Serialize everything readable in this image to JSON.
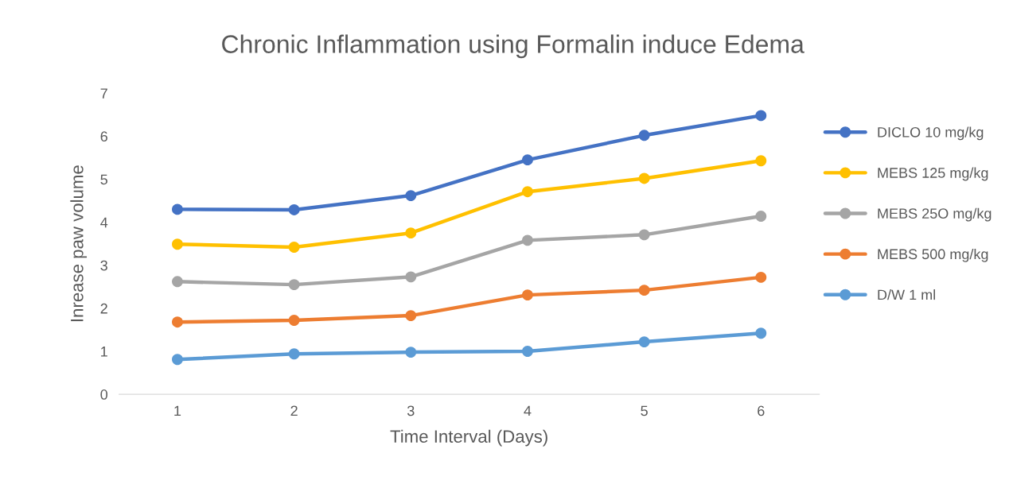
{
  "chart_data": {
    "type": "line",
    "title": "Chronic Inflammation using Formalin induce Edema",
    "xlabel": "Time Interval (Days)",
    "ylabel": "Inrease paw volume",
    "categories": [
      "1",
      "2",
      "3",
      "4",
      "5",
      "6"
    ],
    "series": [
      {
        "name": "DICLO 10 mg/kg",
        "color": "#4472c4",
        "values": [
          4.3,
          4.29,
          4.62,
          5.45,
          6.02,
          6.48
        ]
      },
      {
        "name": "MEBS 125 mg/kg",
        "color": "#ffc000",
        "values": [
          3.49,
          3.42,
          3.75,
          4.71,
          5.02,
          5.43
        ]
      },
      {
        "name": "MEBS 25O mg/kg",
        "color": "#a5a5a5",
        "values": [
          2.62,
          2.55,
          2.73,
          3.58,
          3.71,
          4.14
        ]
      },
      {
        "name": "MEBS 500 mg/kg",
        "color": "#ed7d31",
        "values": [
          1.68,
          1.72,
          1.83,
          2.31,
          2.42,
          2.72
        ]
      },
      {
        "name": "D/W 1 ml",
        "color": "#5b9bd5",
        "values": [
          0.81,
          0.94,
          0.98,
          1.0,
          1.22,
          1.42
        ]
      }
    ],
    "ylim": [
      0,
      7
    ],
    "yticks": [
      0,
      1,
      2,
      3,
      4,
      5,
      6,
      7
    ],
    "grid": false,
    "legend": "right",
    "marker": "circle",
    "line_style": "solid"
  }
}
